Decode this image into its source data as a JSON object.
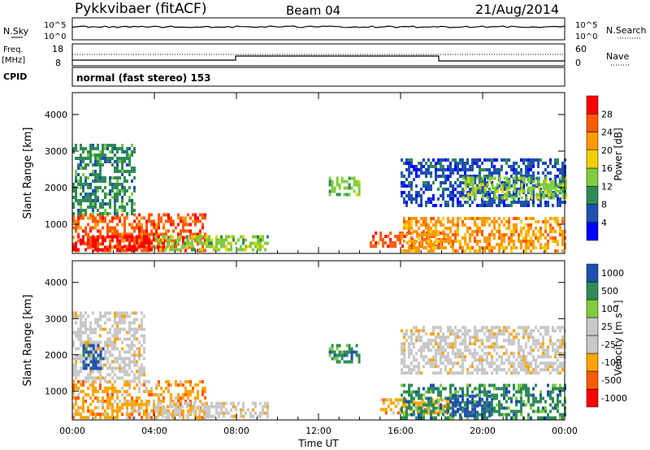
{
  "header": {
    "station": "Pykkvibaer (fitACF)",
    "beam": "Beam 04",
    "date": "21/Aug/2014"
  },
  "panels": {
    "nsky": {
      "left_label": "N.Sky",
      "left_ticks": [
        "10^5",
        "10^0"
      ],
      "right_ticks": [
        "10^5",
        "10^0"
      ],
      "right_label": "N.Search"
    },
    "freq": {
      "left_label_1": "Freq.",
      "left_label_2": "[MHz]",
      "left_ticks": [
        "18",
        "8"
      ],
      "right_ticks": [
        "60",
        "0"
      ],
      "right_label": "Nave"
    },
    "cpid": {
      "left_label": "CPID",
      "mode_text": "normal (fast stereo) 153"
    }
  },
  "colors": {
    "power": [
      "#0000ff",
      "#1f4fb0",
      "#2e8b57",
      "#7fcd3c",
      "#f0d000",
      "#ff9a00",
      "#ff5a00",
      "#ff0000"
    ],
    "velocity": [
      "#ff0000",
      "#ff5a00",
      "#ffa500",
      "#c8c8c8",
      "#c8c8c8",
      "#7fcd3c",
      "#2e8b57",
      "#1f4fb0"
    ],
    "trace": "#000000"
  },
  "chart_data": [
    {
      "type": "heatmap",
      "name_panel": "power",
      "ylabel": "Slant Range [km]",
      "y_ticks": [
        "1000",
        "2000",
        "3000",
        "4000"
      ],
      "ylim": [
        200,
        4600
      ],
      "x_ticks": [
        "00:00",
        "04:00",
        "08:00",
        "12:00",
        "16:00",
        "20:00",
        "00:00"
      ],
      "xlim_hours": [
        0,
        24
      ],
      "colorbar_label": "Power [dB]",
      "colorbar_ticks": [
        "4",
        "8",
        "12",
        "16",
        "20",
        "24",
        "28"
      ],
      "regions": [
        {
          "t0": 0.0,
          "t1": 6.5,
          "r0": 300,
          "r1": 1300,
          "level": 6
        },
        {
          "t0": 0.0,
          "t1": 4.5,
          "r0": 300,
          "r1": 700,
          "level": 7
        },
        {
          "t0": 0.0,
          "t1": 3.0,
          "r0": 1300,
          "r1": 3200,
          "level": 2
        },
        {
          "t0": 4.0,
          "t1": 9.5,
          "r0": 300,
          "r1": 700,
          "level": 3
        },
        {
          "t0": 12.5,
          "t1": 14.0,
          "r0": 1800,
          "r1": 2300,
          "level": 3
        },
        {
          "t0": 14.5,
          "t1": 18.5,
          "r0": 400,
          "r1": 800,
          "level": 6
        },
        {
          "t0": 16.0,
          "t1": 24.0,
          "r0": 300,
          "r1": 1200,
          "level": 5
        },
        {
          "t0": 16.0,
          "t1": 24.0,
          "r0": 1500,
          "r1": 2800,
          "level": 1
        },
        {
          "t0": 19.0,
          "t1": 24.0,
          "r0": 1700,
          "r1": 2300,
          "level": 3
        }
      ]
    },
    {
      "type": "heatmap",
      "name_panel": "velocity",
      "ylabel": "Slant Range [km]",
      "y_ticks": [
        "1000",
        "2000",
        "3000",
        "4000"
      ],
      "ylim": [
        200,
        4600
      ],
      "x_ticks": [
        "00:00",
        "04:00",
        "08:00",
        "12:00",
        "16:00",
        "20:00",
        "00:00"
      ],
      "xlim_hours": [
        0,
        24
      ],
      "xlabel": "Time UT",
      "colorbar_label": "Velocity [m s⁻¹]",
      "colorbar_ticks": [
        "1000",
        "500",
        "100",
        "25",
        "-25",
        "-100",
        "-500",
        "-1000"
      ],
      "regions": [
        {
          "t0": 0.0,
          "t1": 6.5,
          "r0": 300,
          "r1": 1300,
          "level": 2
        },
        {
          "t0": 0.0,
          "t1": 3.5,
          "r0": 1300,
          "r1": 3200,
          "level": 3
        },
        {
          "t0": 0.5,
          "t1": 1.5,
          "r0": 1600,
          "r1": 2300,
          "level": 7
        },
        {
          "t0": 4.0,
          "t1": 9.5,
          "r0": 300,
          "r1": 700,
          "level": 3
        },
        {
          "t0": 12.5,
          "t1": 14.0,
          "r0": 1800,
          "r1": 2300,
          "level": 6
        },
        {
          "t0": 15.0,
          "t1": 18.5,
          "r0": 400,
          "r1": 800,
          "level": 2
        },
        {
          "t0": 16.0,
          "t1": 24.0,
          "r0": 300,
          "r1": 1200,
          "level": 6
        },
        {
          "t0": 16.0,
          "t1": 24.0,
          "r0": 1500,
          "r1": 2800,
          "level": 3
        },
        {
          "t0": 18.5,
          "t1": 20.5,
          "r0": 300,
          "r1": 900,
          "level": 7
        }
      ]
    }
  ]
}
